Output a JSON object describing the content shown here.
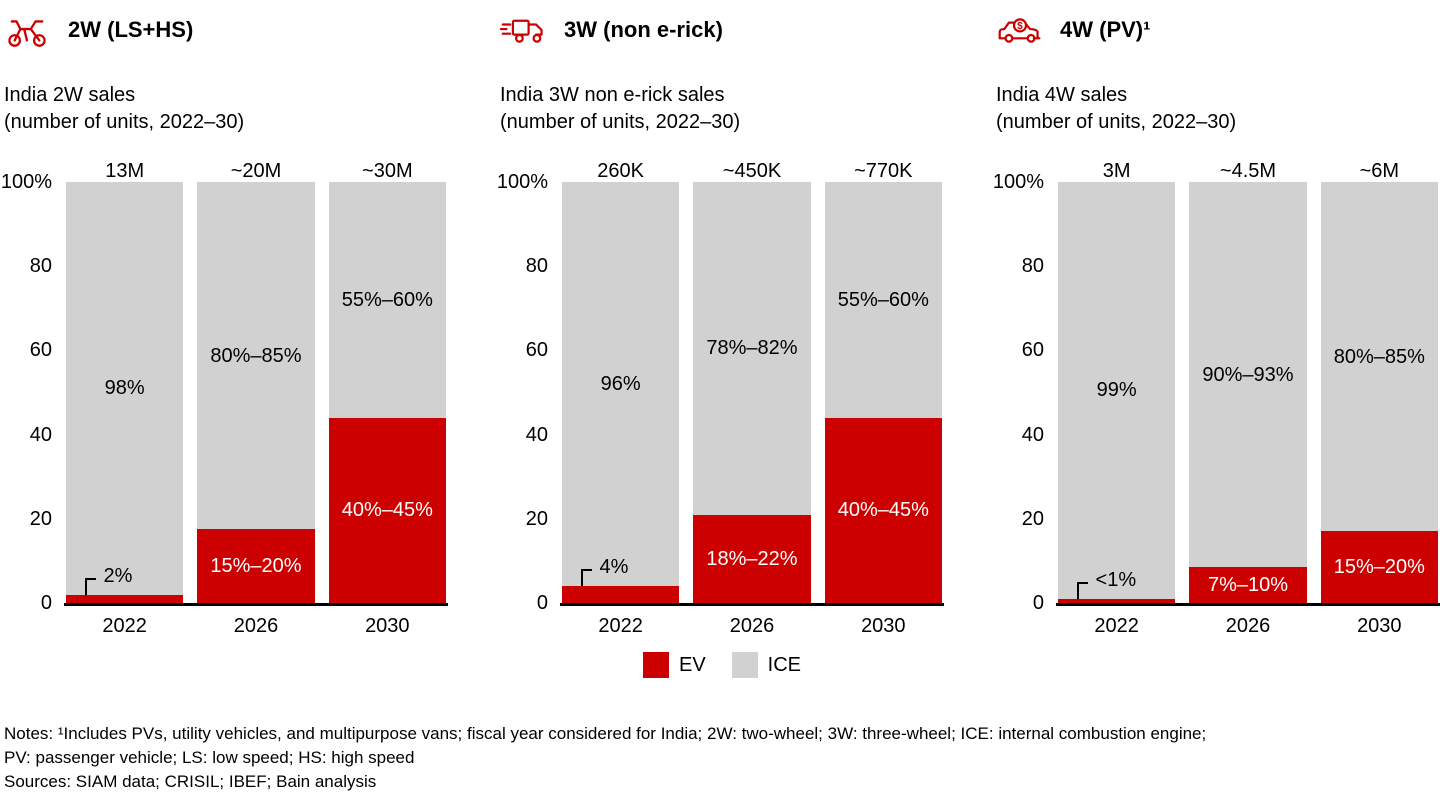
{
  "page": {
    "background": "#ffffff",
    "accent_red": "#cc0000",
    "ice_gray": "#d1d1d1"
  },
  "legend": {
    "items": [
      {
        "label": "EV",
        "color": "#cc0000"
      },
      {
        "label": "ICE",
        "color": "#d1d1d1"
      }
    ]
  },
  "notes": {
    "lines": [
      "Notes: ¹Includes PVs, utility vehicles, and multipurpose vans; fiscal year considered for India; 2W: two-wheel; 3W: three-wheel; ICE: internal combustion engine;",
      "PV: passenger vehicle; LS: low speed; HS: high speed",
      "Sources: SIAM data; CRISIL; IBEF; Bain analysis"
    ]
  },
  "chart_data": [
    {
      "type": "bar",
      "stacked": true,
      "header": "2W (LS+HS)",
      "icon": "motorcycle-icon",
      "title": "India 2W sales",
      "subtitle": "(number of units, 2022–30)",
      "categories": [
        "2022",
        "2026",
        "2030"
      ],
      "totals": [
        "13M",
        "~20M",
        "~30M"
      ],
      "ylim": [
        0,
        100
      ],
      "yticks": [
        100,
        80,
        60,
        40,
        20,
        0
      ],
      "ytick_labels": [
        "100%",
        "80",
        "60",
        "40",
        "20",
        "0"
      ],
      "series": [
        {
          "name": "EV",
          "color": "#cc0000",
          "values": [
            2,
            17.5,
            44
          ],
          "labels": [
            "2%",
            "15%–20%",
            "40%–45%"
          ]
        },
        {
          "name": "ICE",
          "color": "#d1d1d1",
          "values": [
            98,
            82.5,
            56
          ],
          "labels": [
            "98%",
            "80%–85%",
            "55%–60%"
          ]
        }
      ]
    },
    {
      "type": "bar",
      "stacked": true,
      "header": "3W (non e-rick)",
      "icon": "three-wheeler-icon",
      "title": "India 3W non e-rick sales",
      "subtitle": "(number of units, 2022–30)",
      "categories": [
        "2022",
        "2026",
        "2030"
      ],
      "totals": [
        "260K",
        "~450K",
        "~770K"
      ],
      "ylim": [
        0,
        100
      ],
      "yticks": [
        100,
        80,
        60,
        40,
        20,
        0
      ],
      "ytick_labels": [
        "100%",
        "80",
        "60",
        "40",
        "20",
        "0"
      ],
      "series": [
        {
          "name": "EV",
          "color": "#cc0000",
          "values": [
            4,
            21,
            44
          ],
          "labels": [
            "4%",
            "18%–22%",
            "40%–45%"
          ]
        },
        {
          "name": "ICE",
          "color": "#d1d1d1",
          "values": [
            96,
            79,
            56
          ],
          "labels": [
            "96%",
            "78%–82%",
            "55%–60%"
          ]
        }
      ]
    },
    {
      "type": "bar",
      "stacked": true,
      "header": "4W (PV)¹",
      "icon": "car-dollar-icon",
      "title": "India 4W sales",
      "subtitle": "(number of units, 2022–30)",
      "categories": [
        "2022",
        "2026",
        "2030"
      ],
      "totals": [
        "3M",
        "~4.5M",
        "~6M"
      ],
      "ylim": [
        0,
        100
      ],
      "yticks": [
        100,
        80,
        60,
        40,
        20,
        0
      ],
      "ytick_labels": [
        "100%",
        "80",
        "60",
        "40",
        "20",
        "0"
      ],
      "series": [
        {
          "name": "EV",
          "color": "#cc0000",
          "values": [
            1,
            8.5,
            17
          ],
          "labels": [
            "<1%",
            "7%–10%",
            "15%–20%"
          ]
        },
        {
          "name": "ICE",
          "color": "#d1d1d1",
          "values": [
            99,
            91.5,
            83
          ],
          "labels": [
            "99%",
            "90%–93%",
            "80%–85%"
          ]
        }
      ]
    }
  ]
}
